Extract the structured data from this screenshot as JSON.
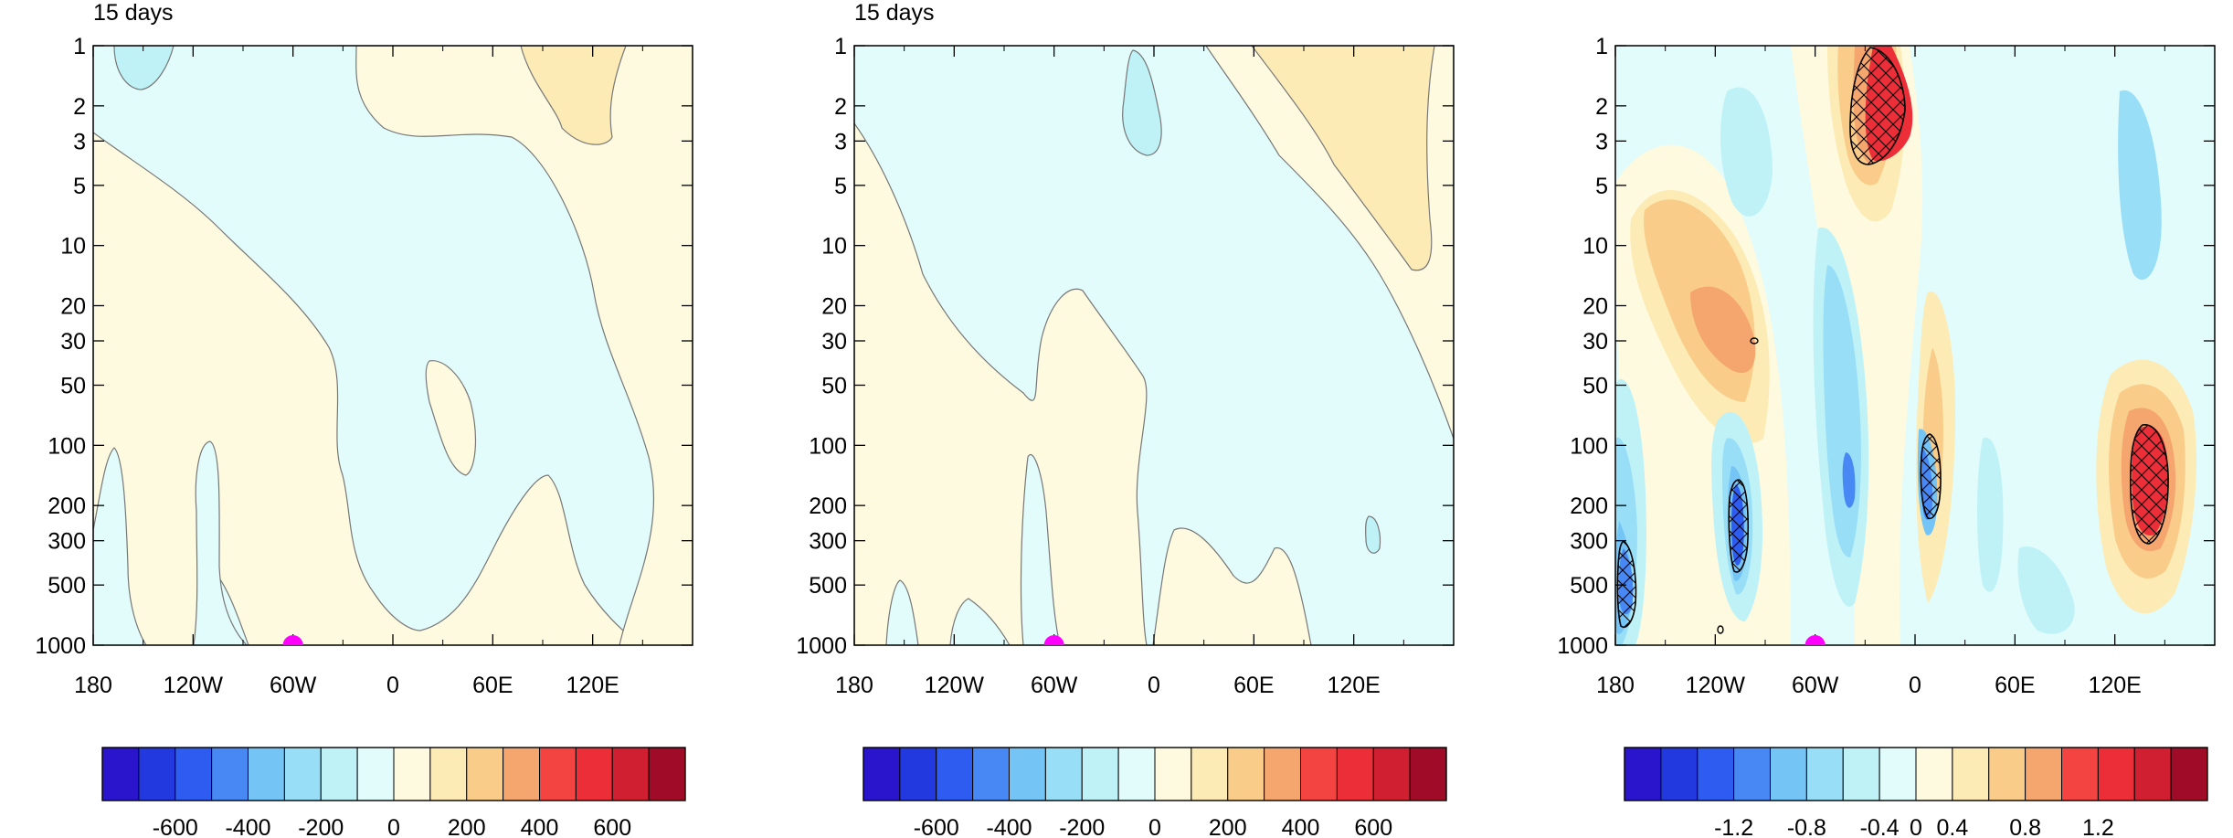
{
  "chart_data": [
    {
      "type": "heatmap",
      "title": "15 days",
      "xlabel": "",
      "ylabel": "",
      "x_ticks": [
        "180",
        "120W",
        "60W",
        "0",
        "60E",
        "120E"
      ],
      "x_tick_lon": [
        -180,
        -120,
        -60,
        0,
        60,
        120
      ],
      "y_ticks": [
        "1",
        "2",
        "3",
        "5",
        "10",
        "20",
        "30",
        "50",
        "100",
        "200",
        "300",
        "500",
        "1000"
      ],
      "y_tick_values": [
        1,
        2,
        3,
        5,
        10,
        20,
        30,
        50,
        100,
        200,
        300,
        500,
        1000
      ],
      "y_scale": "log",
      "y_reversed": true,
      "xlim": [
        -180,
        180
      ],
      "ylim": [
        1000,
        1
      ],
      "marker": {
        "lon": -60,
        "level": 1000,
        "color": "#ff00ff"
      },
      "colorbar": {
        "labels": [
          "-600",
          "-400",
          "-200",
          "0",
          "200",
          "400",
          "600"
        ],
        "label_after_bin": [
          2,
          4,
          6,
          8,
          10,
          12,
          14
        ]
      }
    },
    {
      "type": "heatmap",
      "title": "15 days",
      "xlabel": "",
      "ylabel": "",
      "x_ticks": [
        "180",
        "120W",
        "60W",
        "0",
        "60E",
        "120E"
      ],
      "x_tick_lon": [
        -180,
        -120,
        -60,
        0,
        60,
        120
      ],
      "y_ticks": [
        "1",
        "2",
        "3",
        "5",
        "10",
        "20",
        "30",
        "50",
        "100",
        "200",
        "300",
        "500",
        "1000"
      ],
      "y_tick_values": [
        1,
        2,
        3,
        5,
        10,
        20,
        30,
        50,
        100,
        200,
        300,
        500,
        1000
      ],
      "y_scale": "log",
      "y_reversed": true,
      "xlim": [
        -180,
        180
      ],
      "ylim": [
        1000,
        1
      ],
      "marker": {
        "lon": -60,
        "level": 1000,
        "color": "#ff00ff"
      },
      "colorbar": {
        "labels": [
          "-600",
          "-400",
          "-200",
          "0",
          "200",
          "400",
          "600"
        ],
        "label_after_bin": [
          2,
          4,
          6,
          8,
          10,
          12,
          14
        ]
      }
    },
    {
      "type": "heatmap",
      "title": "",
      "xlabel": "",
      "ylabel": "",
      "x_ticks": [
        "180",
        "120W",
        "60W",
        "0",
        "60E",
        "120E"
      ],
      "x_tick_lon": [
        -180,
        -120,
        -60,
        0,
        60,
        120
      ],
      "y_ticks": [
        "1",
        "2",
        "3",
        "5",
        "10",
        "20",
        "30",
        "50",
        "100",
        "200",
        "300",
        "500",
        "1000"
      ],
      "y_tick_values": [
        1,
        2,
        3,
        5,
        10,
        20,
        30,
        50,
        100,
        200,
        300,
        500,
        1000
      ],
      "y_scale": "log",
      "y_reversed": true,
      "xlim": [
        -180,
        180
      ],
      "ylim": [
        1000,
        1
      ],
      "marker": {
        "lon": -60,
        "level": 1000,
        "color": "#ff00ff"
      },
      "colorbar": {
        "labels": [
          "-1.2",
          "-0.8",
          "-0.4",
          "0",
          "0.4",
          "0.8",
          "1.2"
        ],
        "label_after_bin": [
          3,
          5,
          7,
          8,
          9,
          11,
          13
        ]
      }
    }
  ],
  "palette": [
    "#2b15cc",
    "#2339e0",
    "#2e5cf0",
    "#4788f5",
    "#74c4f5",
    "#99def7",
    "#bff2f7",
    "#e2fbfb",
    "#fefae0",
    "#fdebb6",
    "#f9cd89",
    "#f5a66e",
    "#f34441",
    "#ec2e38",
    "#d11f32",
    "#a00c27"
  ]
}
